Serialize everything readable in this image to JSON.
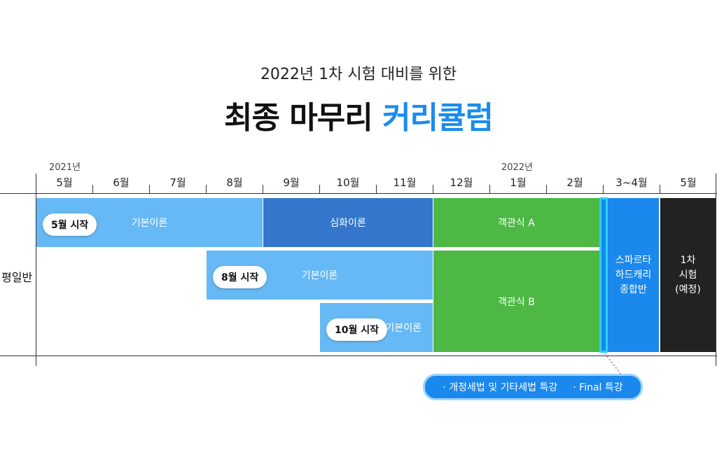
{
  "header": {
    "subtitle": "2022년 1차 시험 대비를 위한",
    "title_main": "최종 마무리",
    "title_accent": "커리큘럼"
  },
  "timeline": {
    "year_labels": [
      "2021년",
      "2022년"
    ],
    "months": [
      "5월",
      "6월",
      "7월",
      "8월",
      "9월",
      "10월",
      "11월",
      "12월",
      "1월",
      "2월",
      "3~4월",
      "5월"
    ]
  },
  "row_label": "평일반",
  "tracks": {
    "may_start_pill": "5월 시작",
    "may_basic": "기본이론",
    "advanced": "심화이론",
    "objective_a": "객관식 A",
    "aug_start_pill": "8월 시작",
    "aug_basic": "기본이론",
    "objective_b": "객관식 B",
    "oct_start_pill": "10월 시작",
    "oct_basic": "기본이론",
    "sparta": [
      "스파르타",
      "하드캐리",
      "종합반"
    ],
    "exam": [
      "1차",
      "시험",
      "(예정)"
    ]
  },
  "callout": {
    "item1": "· 개정세법 및 기타세법 특강",
    "item2": "· Final 특강"
  },
  "colors": {
    "accent": "#1a8cf0",
    "basic_theory": "#66b9f5",
    "advanced_theory": "#3477cc",
    "objective": "#4db844",
    "sparta": "#1a88ec",
    "exam": "#222222",
    "highlight_border": "#28d3f5"
  }
}
